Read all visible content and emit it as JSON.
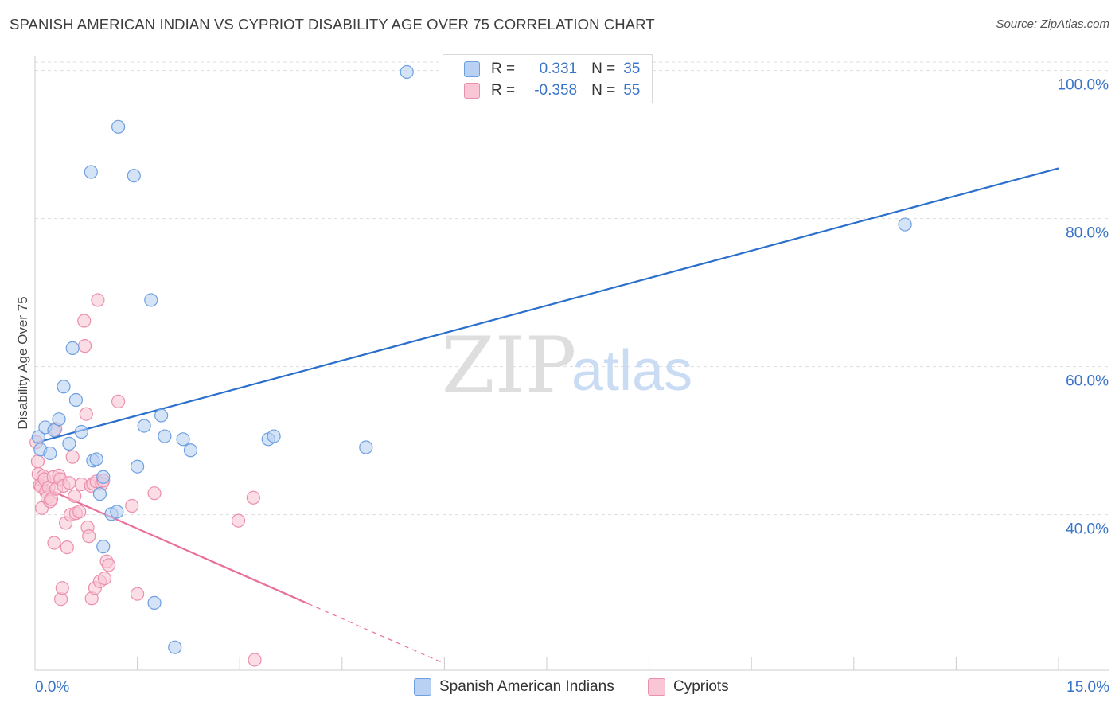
{
  "title": "SPANISH AMERICAN INDIAN VS CYPRIOT DISABILITY AGE OVER 75 CORRELATION CHART",
  "source": "Source: ZipAtlas.com",
  "watermark": {
    "zip": "ZIP",
    "atlas": "atlas"
  },
  "legend": {
    "rows": [
      {
        "r_label": "R =",
        "r_value": "0.331",
        "n_label": "N =",
        "n_value": "35"
      },
      {
        "r_label": "R =",
        "r_value": "-0.358",
        "n_label": "N =",
        "n_value": "55"
      }
    ]
  },
  "bottom_legend": [
    "Spanish American Indians",
    "Cypriots"
  ],
  "colors": {
    "blue_fill": "#b9d1f2",
    "blue_stroke": "#6e9fe0",
    "blue_line": "#2a6fcc",
    "pink_fill": "#f8c6d4",
    "pink_stroke": "#ec8fad",
    "pink_line": "#e8709a",
    "axis_text": "#3a74c9",
    "grid": "#dddddd"
  },
  "chart_data": {
    "type": "scatter",
    "title": "SPANISH AMERICAN INDIAN VS CYPRIOT DISABILITY AGE OVER 75 CORRELATION CHART",
    "xlabel": "",
    "ylabel": "Disability Age Over 75",
    "xlim": [
      0,
      15
    ],
    "ylim": [
      19,
      102
    ],
    "x_tick_labels": [
      "0.0%",
      "15.0%"
    ],
    "y_ticks": [
      40,
      60,
      80,
      100
    ],
    "y_tick_labels": [
      "40.0%",
      "60.0%",
      "80.0%",
      "100.0%"
    ],
    "grid": true,
    "legend_position": "top-center",
    "series": [
      {
        "name": "Spanish American Indians",
        "r": 0.331,
        "n": 35,
        "points": [
          [
            0.05,
            50.5
          ],
          [
            0.08,
            48.8
          ],
          [
            0.15,
            51.8
          ],
          [
            0.22,
            48.3
          ],
          [
            0.28,
            51.4
          ],
          [
            0.35,
            52.9
          ],
          [
            0.42,
            57.3
          ],
          [
            0.5,
            49.6
          ],
          [
            0.6,
            55.5
          ],
          [
            0.68,
            51.2
          ],
          [
            0.55,
            62.5
          ],
          [
            0.82,
            86.3
          ],
          [
            0.85,
            47.3
          ],
          [
            0.9,
            47.5
          ],
          [
            0.95,
            42.8
          ],
          [
            1.0,
            45.1
          ],
          [
            1.0,
            35.7
          ],
          [
            1.12,
            40.1
          ],
          [
            1.2,
            40.4
          ],
          [
            1.22,
            92.4
          ],
          [
            1.45,
            85.8
          ],
          [
            1.5,
            46.5
          ],
          [
            1.6,
            52.0
          ],
          [
            1.7,
            69.0
          ],
          [
            1.75,
            28.1
          ],
          [
            1.85,
            53.4
          ],
          [
            1.9,
            50.6
          ],
          [
            2.05,
            22.1
          ],
          [
            2.17,
            50.2
          ],
          [
            2.28,
            48.7
          ],
          [
            3.42,
            50.2
          ],
          [
            3.5,
            50.6
          ],
          [
            4.85,
            49.1
          ],
          [
            5.45,
            99.8
          ],
          [
            12.75,
            79.2
          ]
        ],
        "trend": {
          "x": [
            0,
            15
          ],
          "y": [
            49.7,
            86.8
          ]
        }
      },
      {
        "name": "Cypriots",
        "r": -0.358,
        "n": 55,
        "points": [
          [
            0.02,
            49.8
          ],
          [
            0.04,
            47.2
          ],
          [
            0.05,
            45.5
          ],
          [
            0.07,
            44.0
          ],
          [
            0.09,
            43.8
          ],
          [
            0.1,
            40.9
          ],
          [
            0.12,
            45.2
          ],
          [
            0.14,
            44.8
          ],
          [
            0.16,
            43.1
          ],
          [
            0.18,
            42.3
          ],
          [
            0.2,
            43.7
          ],
          [
            0.22,
            41.8
          ],
          [
            0.24,
            42.1
          ],
          [
            0.27,
            45.1
          ],
          [
            0.28,
            36.2
          ],
          [
            0.3,
            51.6
          ],
          [
            0.31,
            43.5
          ],
          [
            0.35,
            45.3
          ],
          [
            0.37,
            44.8
          ],
          [
            0.38,
            28.6
          ],
          [
            0.4,
            30.1
          ],
          [
            0.42,
            43.9
          ],
          [
            0.45,
            38.9
          ],
          [
            0.47,
            35.6
          ],
          [
            0.5,
            44.3
          ],
          [
            0.52,
            40.0
          ],
          [
            0.55,
            47.8
          ],
          [
            0.58,
            42.5
          ],
          [
            0.6,
            40.2
          ],
          [
            0.65,
            40.4
          ],
          [
            0.68,
            44.1
          ],
          [
            0.72,
            66.2
          ],
          [
            0.73,
            62.8
          ],
          [
            0.75,
            53.6
          ],
          [
            0.77,
            38.3
          ],
          [
            0.79,
            37.1
          ],
          [
            0.82,
            43.9
          ],
          [
            0.83,
            28.7
          ],
          [
            0.85,
            44.2
          ],
          [
            0.88,
            30.1
          ],
          [
            0.9,
            44.5
          ],
          [
            0.92,
            69.0
          ],
          [
            0.95,
            31.0
          ],
          [
            0.98,
            44.2
          ],
          [
            1.0,
            44.6
          ],
          [
            1.02,
            31.4
          ],
          [
            1.05,
            33.7
          ],
          [
            1.08,
            33.2
          ],
          [
            1.22,
            55.3
          ],
          [
            1.42,
            41.2
          ],
          [
            1.5,
            29.3
          ],
          [
            1.75,
            42.9
          ],
          [
            2.98,
            39.2
          ],
          [
            3.2,
            42.3
          ],
          [
            3.22,
            20.4
          ]
        ],
        "trend": {
          "x": [
            0,
            4.0
          ],
          "y": [
            44.2,
            28.0
          ]
        },
        "trend_extension": {
          "x": [
            4.0,
            6.0
          ],
          "y": [
            28.0,
            19.9
          ]
        }
      }
    ]
  }
}
